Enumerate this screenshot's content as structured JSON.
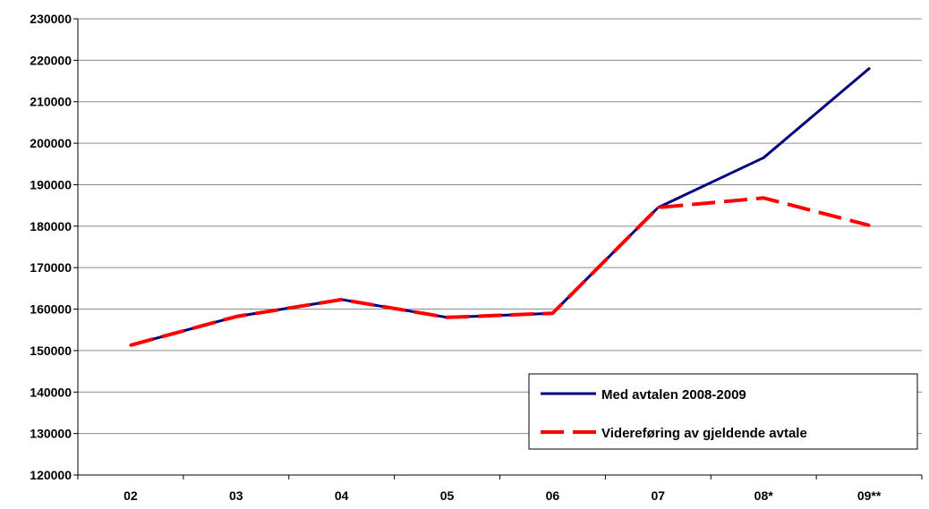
{
  "chart_data": {
    "type": "line",
    "categories": [
      "02",
      "03",
      "04",
      "05",
      "06",
      "07",
      "08*",
      "09**"
    ],
    "series": [
      {
        "name": "Med avtalen 2008-2009",
        "color": "#000080",
        "dash": "solid",
        "values": [
          151300,
          158200,
          162300,
          158000,
          159000,
          184500,
          196500,
          218000
        ]
      },
      {
        "name": "Videreføring av gjeldende avtale",
        "color": "#ff0000",
        "dash": "dashed",
        "values": [
          151300,
          158200,
          162300,
          158000,
          159000,
          184500,
          186800,
          180200
        ]
      }
    ],
    "ylim": [
      120000,
      230000
    ],
    "yticks": [
      120000,
      130000,
      140000,
      150000,
      160000,
      170000,
      180000,
      190000,
      200000,
      210000,
      220000,
      230000
    ],
    "grid": true,
    "legend_position": "bottom-right",
    "title": "",
    "xlabel": "",
    "ylabel": ""
  }
}
